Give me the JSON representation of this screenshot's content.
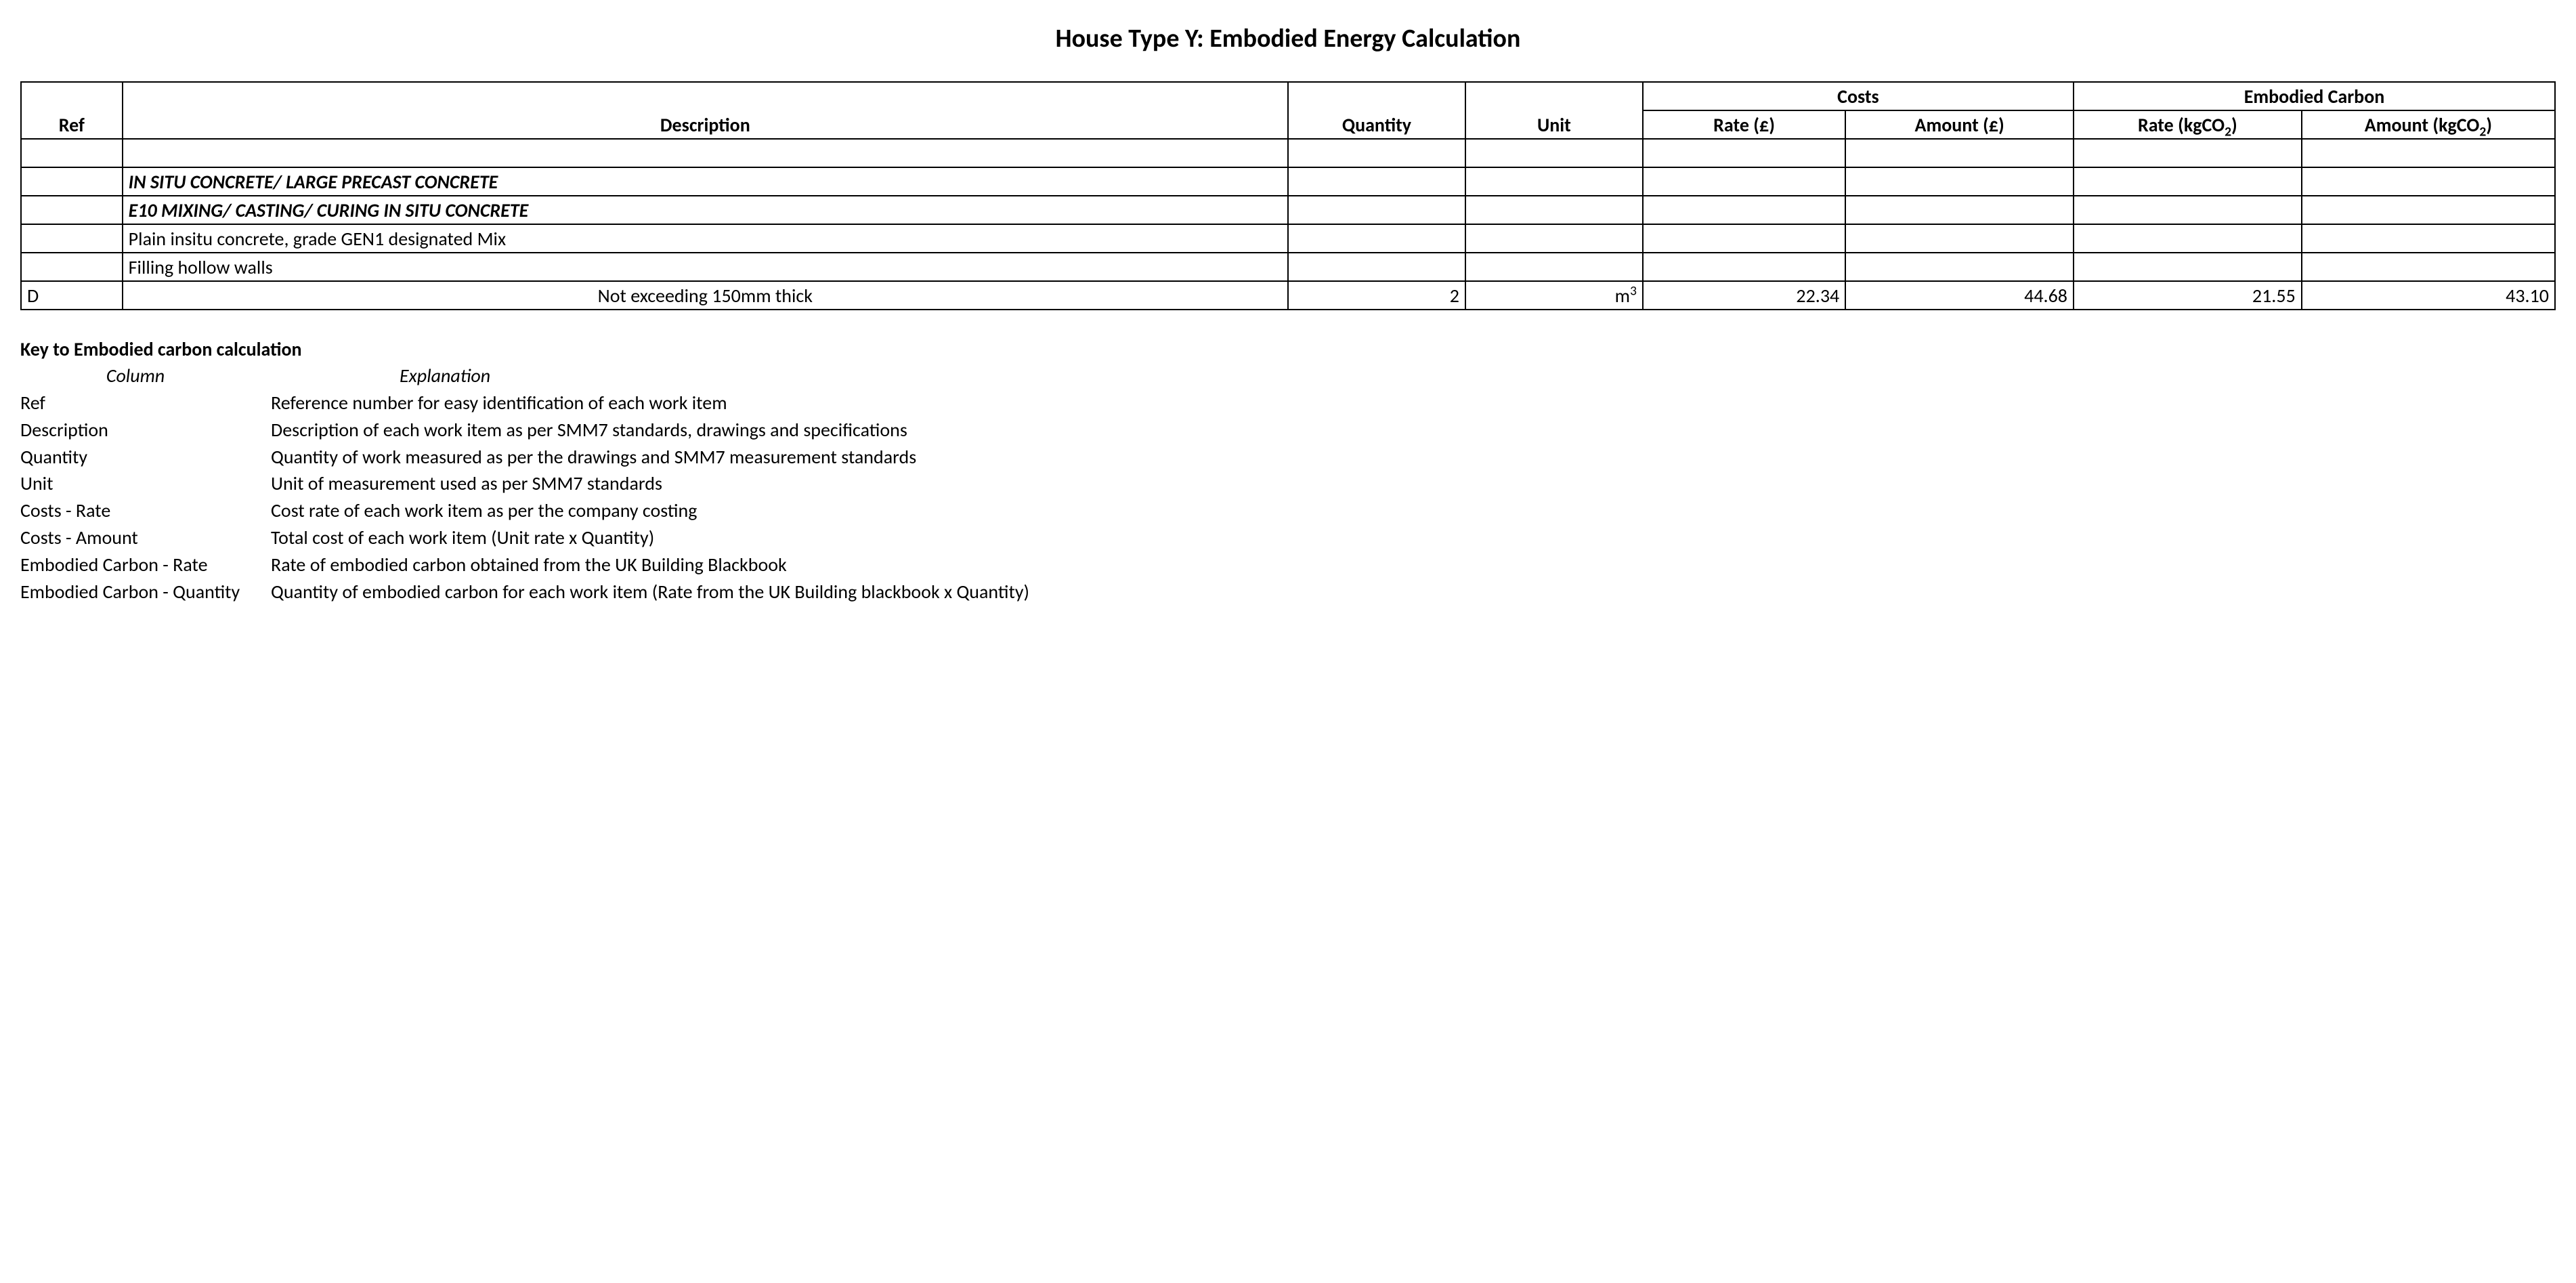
{
  "title": "House Type Y: Embodied Energy Calculation",
  "table": {
    "headers": {
      "ref": "Ref",
      "description": "Description",
      "quantity": "Quantity",
      "unit": "Unit",
      "costs_group": "Costs",
      "embodied_group": "Embodied Carbon",
      "rate_cost": "Rate (£)",
      "amount_cost": "Amount (£)",
      "rate_carbon_prefix": "Rate (kgCO",
      "rate_carbon_sub": "2",
      "rate_carbon_suffix": ")",
      "amount_carbon_prefix": "Amount (kgCO",
      "amount_carbon_sub": "2",
      "amount_carbon_suffix": ")"
    },
    "rows": [
      {
        "type": "blank"
      },
      {
        "type": "section",
        "desc": "IN SITU CONCRETE/ LARGE PRECAST CONCRETE"
      },
      {
        "type": "subhead",
        "desc": "E10 MIXING/ CASTING/ CURING IN SITU CONCRETE"
      },
      {
        "type": "text",
        "desc": "Plain insitu concrete, grade GEN1 designated Mix"
      },
      {
        "type": "text",
        "desc": "Filling hollow walls"
      },
      {
        "type": "data",
        "ref": "D",
        "desc": "Not exceeding 150mm thick",
        "desc_align": "center",
        "qty": "2",
        "unit_base": "m",
        "unit_sup": "3",
        "cost_rate": "22.34",
        "cost_amount": "44.68",
        "carbon_rate": "21.55",
        "carbon_amount": "43.10"
      }
    ]
  },
  "key": {
    "title": "Key to Embodied carbon calculation",
    "header_column": "Column",
    "header_explanation": "Explanation",
    "rows": [
      {
        "col": "Ref",
        "exp": "Reference number for easy identification of each work item"
      },
      {
        "col": "Description",
        "exp": "Description of each work item as per SMM7 standards, drawings and specifications"
      },
      {
        "col": "Quantity",
        "exp": "Quantity of work measured as per the drawings and SMM7 measurement standards"
      },
      {
        "col": "Unit",
        "exp": "Unit of measurement used as per SMM7 standards"
      },
      {
        "col": "Costs - Rate",
        "exp": "Cost rate of each work item as per the company costing"
      },
      {
        "col": "Costs - Amount",
        "exp": "Total cost of each work item (Unit rate x Quantity)"
      },
      {
        "col": "Embodied Carbon - Rate",
        "exp": "Rate of embodied carbon obtained from the UK Building Blackbook"
      },
      {
        "col": "Embodied Carbon - Quantity",
        "exp": "Quantity of embodied carbon for each work item (Rate from the UK Building blackbook x Quantity)"
      }
    ]
  }
}
